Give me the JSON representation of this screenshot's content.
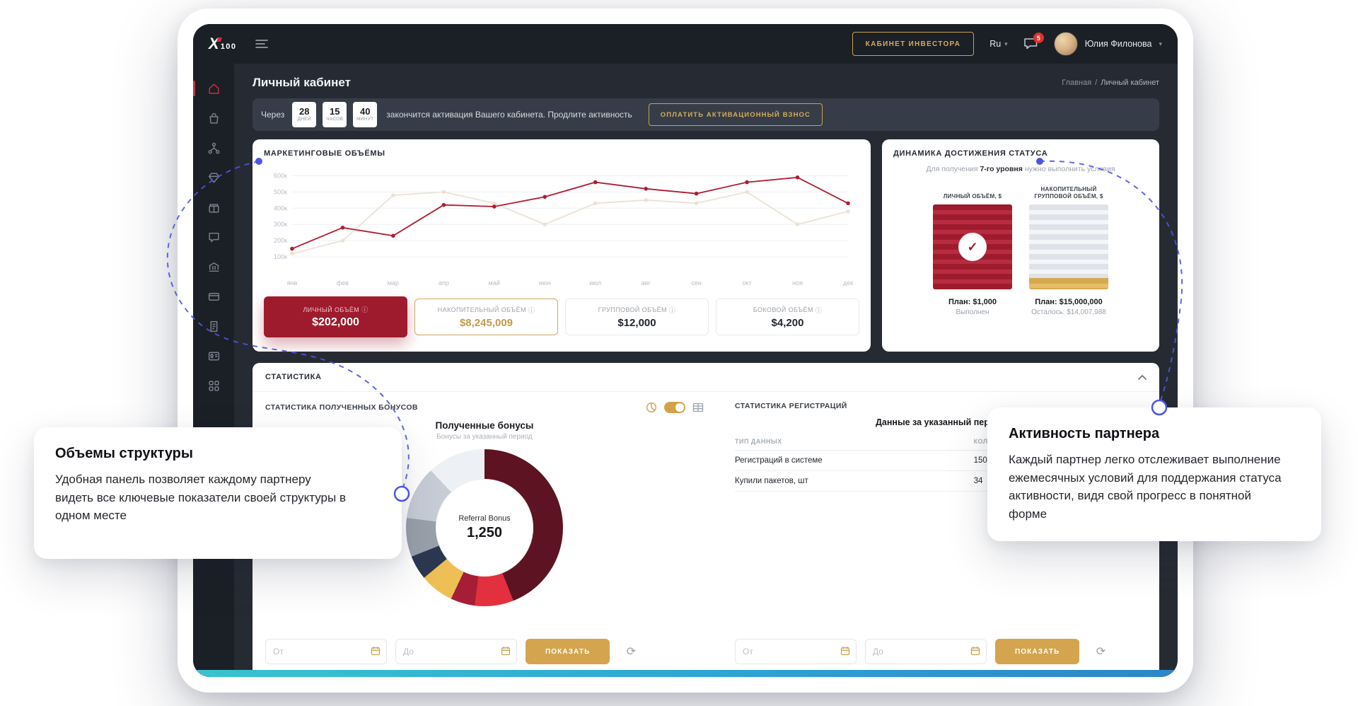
{
  "nav": {
    "logo_x": "X",
    "logo_num": "100",
    "investor_button": "КАБИНЕТ ИНВЕСТОРА",
    "lang": "Ru",
    "messages_badge": "5",
    "user_name": "Юлия Филонова"
  },
  "icons": {
    "caret_down": "▾",
    "info": "ⓘ",
    "refresh": "⟳"
  },
  "page": {
    "title": "Личный кабинет",
    "breadcrumb_home": "Главная",
    "breadcrumb_sep": "/",
    "breadcrumb_current": "Личный кабинет"
  },
  "alert": {
    "prefix": "Через",
    "counters": [
      {
        "value": "28",
        "unit": "дней"
      },
      {
        "value": "15",
        "unit": "часов"
      },
      {
        "value": "40",
        "unit": "минут"
      }
    ],
    "text": "закончится активация Вашего кабинета. Продлите активность",
    "button": "ОПЛАТИТЬ АКТИВАЦИОННЫЙ ВЗНОС"
  },
  "marketing": {
    "title": "МАРКЕТИНГОВЫЕ ОБЪЁМЫ",
    "stats": [
      {
        "label": "ЛИЧНЫЙ ОБЪЁМ",
        "value": "$202,000"
      },
      {
        "label": "НАКОПИТЕЛЬНЫЙ ОБЪЁМ",
        "value": "$8,245,009"
      },
      {
        "label": "ГРУППОВОЙ ОБЪЁМ",
        "value": "$12,000"
      },
      {
        "label": "БОКОВОЙ ОБЪЁМ",
        "value": "$4,200"
      }
    ]
  },
  "status_card": {
    "title": "ДИНАМИКА ДОСТИЖЕНИЯ СТАТУСА",
    "subtitle_prefix": "Для получения",
    "subtitle_bold": "7-го уровня",
    "subtitle_suffix": "нужно выполнить условия",
    "columns": [
      {
        "label": "ЛИЧНЫЙ ОБЪЁМ, $",
        "plan": "План: $1,000",
        "status": "Выполнен"
      },
      {
        "label": "НАКОПИТЕЛЬНЫЙ ГРУППОВОЙ ОБЪЁМ, $",
        "plan": "План: $15,000,000",
        "status": "Осталось: $14,007,988"
      }
    ]
  },
  "statistics": {
    "title": "СТАТИСТИКА",
    "bonuses": {
      "title": "СТАТИСТИКА ПОЛУЧЕННЫХ БОНУСОВ",
      "chart_title": "Полученные бонусы",
      "chart_subtitle": "Бонусы за указанный период",
      "center_label": "Referral Bonus",
      "center_value": "1,250",
      "from_placeholder": "От",
      "to_placeholder": "До",
      "show_button": "ПОКАЗАТЬ"
    },
    "registrations": {
      "title": "СТАТИСТИКА РЕГИСТРАЦИЙ",
      "subtitle": "Данные за указанный период",
      "table": {
        "headers": [
          "ТИП ДАННЫХ",
          "КОЛИЧЕСТВО"
        ],
        "rows": [
          [
            "Регистраций в системе",
            "150"
          ],
          [
            "Купили пакетов, шт",
            "34"
          ]
        ]
      },
      "from_placeholder": "От",
      "to_placeholder": "До",
      "show_button": "ПОКАЗАТЬ"
    }
  },
  "callouts": [
    {
      "title": "Объемы структуры",
      "text": "Удобная панель позволяет каждому партнеру видеть все ключевые показатели своей структуры в одном месте"
    },
    {
      "title": "Активность партнера",
      "text": "Каждый партнер легко отслеживает выполнение ежемесячных условий для поддержания статуса активности, видя свой прогресс в понятной форме"
    }
  ],
  "colors": {
    "gold": "#c9a250",
    "red": "#9e1b2d",
    "blue": "#4a55e1"
  },
  "chart_data": [
    {
      "type": "line",
      "title": "МАРКЕТИНГОВЫЕ ОБЪЁМЫ",
      "x": [
        "янв",
        "фев",
        "мар",
        "апр",
        "май",
        "июн",
        "июл",
        "авг",
        "сен",
        "окт",
        "ноя",
        "дек"
      ],
      "y_ticks": [
        100000,
        200000,
        300000,
        400000,
        500000,
        600000
      ],
      "y_tick_labels": [
        "100к",
        "200к",
        "300к",
        "400к",
        "500к",
        "600к"
      ],
      "ylim": [
        0,
        650000
      ],
      "grid": true,
      "legend": "none",
      "series": [
        {
          "name": "Личный объём",
          "color": "#b01d30",
          "values": [
            150000,
            280000,
            230000,
            420000,
            410000,
            470000,
            560000,
            520000,
            490000,
            560000,
            590000,
            430000
          ]
        },
        {
          "name": "Накопительный объём",
          "color": "#ece2d2",
          "values": [
            120000,
            200000,
            480000,
            500000,
            430000,
            300000,
            430000,
            450000,
            430000,
            500000,
            300000,
            380000
          ]
        }
      ]
    },
    {
      "type": "donut",
      "title": "Полученные бонусы",
      "subtitle": "Бонусы за указанный период",
      "center_label": "Referral Bonus",
      "center_value": "1,250",
      "segments": [
        {
          "label": "Referral Bonus",
          "value": 44,
          "color": "#5e1322"
        },
        {
          "value": 8,
          "color": "#e2303f"
        },
        {
          "value": 5,
          "color": "#a51e35"
        },
        {
          "value": 7,
          "color": "#eebf55"
        },
        {
          "value": 5,
          "color": "#2c3850"
        },
        {
          "value": 8,
          "color": "#99a1ab"
        },
        {
          "value": 11,
          "color": "#c7cdd6"
        },
        {
          "value": 12,
          "color": "#edf0f4"
        }
      ]
    }
  ]
}
